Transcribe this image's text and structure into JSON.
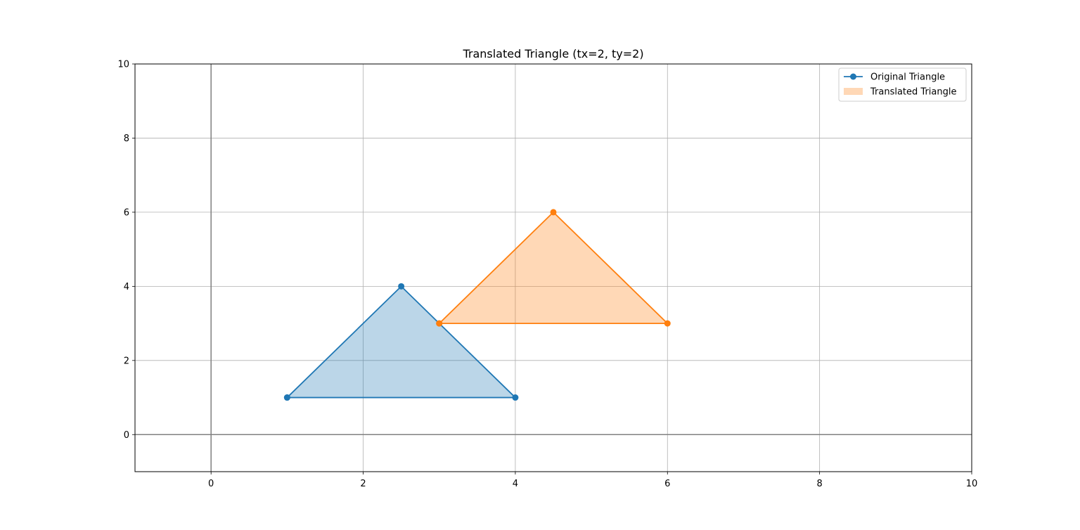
{
  "chart_data": {
    "type": "line",
    "title": "Translated Triangle (tx=2, ty=2)",
    "xlabel": "",
    "ylabel": "",
    "xlim": [
      -1,
      10
    ],
    "ylim": [
      -1,
      10
    ],
    "x_ticks": [
      0,
      2,
      4,
      6,
      8,
      10
    ],
    "y_ticks": [
      0,
      2,
      4,
      6,
      8,
      10
    ],
    "grid": true,
    "axis_lines": {
      "x0": true,
      "y0": true,
      "color": "#808080"
    },
    "legend_placement": "top-right",
    "series": [
      {
        "name": "Original Triangle",
        "legend_style": "line-marker",
        "color": "#1f77b4",
        "fill_color": "#1f77b4",
        "fill_opacity": 0.3,
        "x": [
          1,
          4,
          2.5,
          1
        ],
        "y": [
          1,
          1,
          4,
          1
        ]
      },
      {
        "name": "Translated Triangle",
        "legend_style": "fill-patch",
        "color": "#ff7f0e",
        "fill_color": "#ff7f0e",
        "fill_opacity": 0.3,
        "x": [
          3,
          6,
          4.5,
          3
        ],
        "y": [
          3,
          3,
          6,
          3
        ]
      }
    ]
  }
}
